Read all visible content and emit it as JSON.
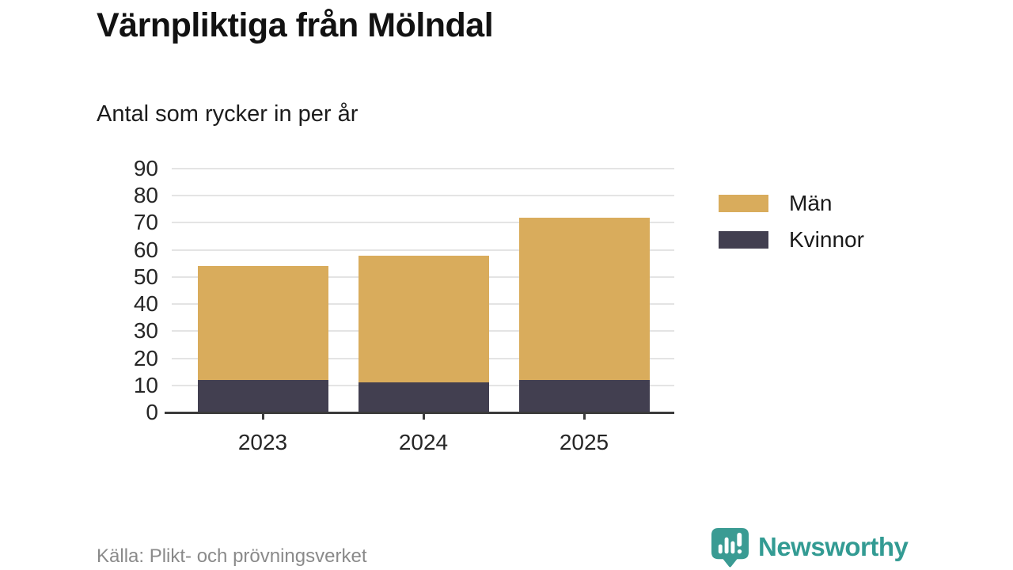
{
  "header": {
    "title": "Värnpliktiga från Mölndal",
    "subtitle": "Antal som rycker in per år"
  },
  "footer": {
    "source": "Källa: Plikt- och prövningsverket",
    "brand_name": "Newsworthy",
    "brand_color": "#339b93"
  },
  "colors": {
    "men": "#d9ac5c",
    "women": "#423f50",
    "grid": "#e4e4e4",
    "axis": "#3b3b3b",
    "text": "#262626",
    "muted": "#8a8a8a"
  },
  "chart_data": {
    "type": "bar",
    "stacked": true,
    "title": "Värnpliktiga från Mölndal",
    "subtitle": "Antal som rycker in per år",
    "categories": [
      "2023",
      "2024",
      "2025"
    ],
    "series": [
      {
        "name": "Män",
        "color": "#d9ac5c",
        "values": [
          42,
          47,
          60
        ]
      },
      {
        "name": "Kvinnor",
        "color": "#423f50",
        "values": [
          12,
          11,
          12
        ]
      }
    ],
    "totals": [
      54,
      58,
      72
    ],
    "ylim": [
      0,
      90
    ],
    "yticks": [
      0,
      10,
      20,
      30,
      40,
      50,
      60,
      70,
      80,
      90
    ],
    "grid": true,
    "legend_position": "right",
    "xlabel": "",
    "ylabel": ""
  }
}
